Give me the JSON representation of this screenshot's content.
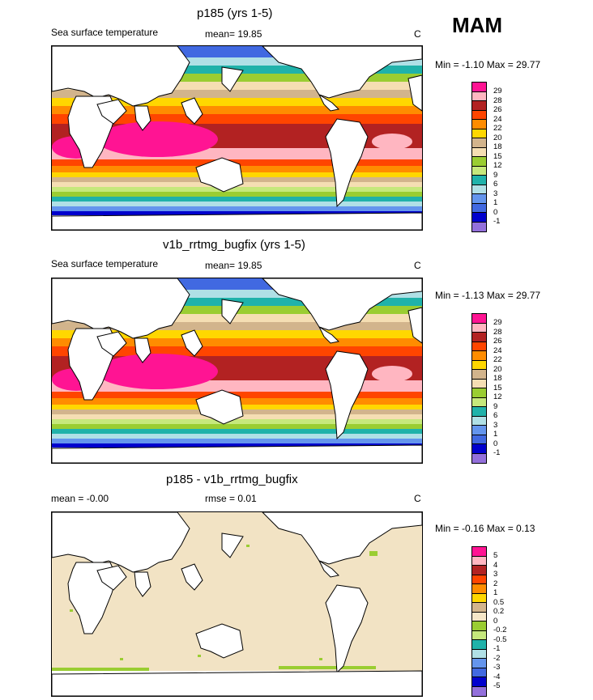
{
  "season": "MAM",
  "units": "C",
  "panels": [
    {
      "title": "p185 (yrs 1-5)",
      "subtitle": "Sea surface temperature",
      "stat": "mean=  19.85",
      "minmax": "Min = -1.10 Max =  29.77",
      "labels": [
        "29",
        "28",
        "26",
        "24",
        "22",
        "20",
        "18",
        "15",
        "12",
        "9",
        "6",
        "3",
        "1",
        "0",
        "-1"
      ]
    },
    {
      "title": "v1b_rrtmg_bugfix (yrs 1-5)",
      "subtitle": "Sea surface temperature",
      "stat": "mean=  19.85",
      "minmax": "Min = -1.13 Max =  29.77",
      "labels": [
        "29",
        "28",
        "26",
        "24",
        "22",
        "20",
        "18",
        "15",
        "12",
        "9",
        "6",
        "3",
        "1",
        "0",
        "-1"
      ]
    },
    {
      "title": "p185 - v1b_rrtmg_bugfix",
      "stat_left": "mean =  -0.00",
      "stat_mid": "rmse =   0.01",
      "minmax": "Min =  -0.16 Max =   0.13",
      "labels": [
        "5",
        "4",
        "3",
        "2",
        "1",
        "0.5",
        "0.2",
        "0",
        "-0.2",
        "-0.5",
        "-1",
        "-2",
        "-3",
        "-4",
        "-5"
      ]
    }
  ],
  "palette": {
    "sst": [
      "#ff1493",
      "#ffb6c1",
      "#b22222",
      "#ff4500",
      "#ff8c00",
      "#ffd700",
      "#d2b48c",
      "#f5deb3",
      "#9acd32",
      "#c6e87c",
      "#20b2aa",
      "#b0e0e6",
      "#6495ed",
      "#4169e1",
      "#0000cd",
      "#9370db"
    ],
    "diff": [
      "#ff1493",
      "#ffb6c1",
      "#b22222",
      "#ff4500",
      "#ff8c00",
      "#ffd700",
      "#d2b48c",
      "#f5e6c8",
      "#9acd32",
      "#c6e87c",
      "#20b2aa",
      "#b0e0e6",
      "#6495ed",
      "#4169e1",
      "#0000cd",
      "#9370db"
    ],
    "land": "#ffffff",
    "ocean_diff": "#f2e3c4"
  }
}
